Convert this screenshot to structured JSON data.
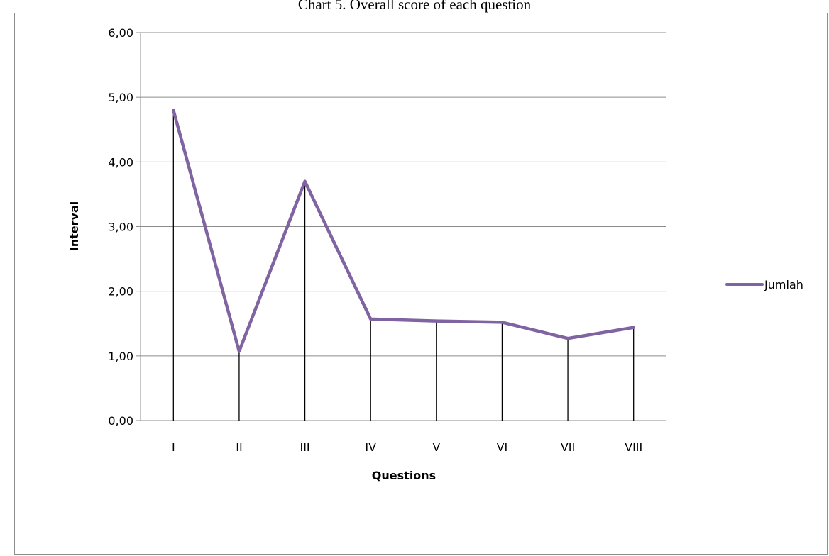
{
  "chart_data": {
    "type": "line",
    "title": "Chart 5. Overall score of each question",
    "xlabel": "Questions",
    "ylabel": "Interval",
    "categories": [
      "I",
      "II",
      "III",
      "IV",
      "V",
      "VI",
      "VII",
      "VIII"
    ],
    "series": [
      {
        "name": "Jumlah",
        "color": "#8064a2",
        "values": [
          4.8,
          1.07,
          3.7,
          1.57,
          1.54,
          1.52,
          1.27,
          1.44
        ]
      }
    ],
    "ylim": [
      0,
      6
    ],
    "yticks": [
      "0,00",
      "1,00",
      "2,00",
      "3,00",
      "4,00",
      "5,00",
      "6,00"
    ],
    "grid": true,
    "drop_lines": true,
    "legend_position": "right"
  }
}
